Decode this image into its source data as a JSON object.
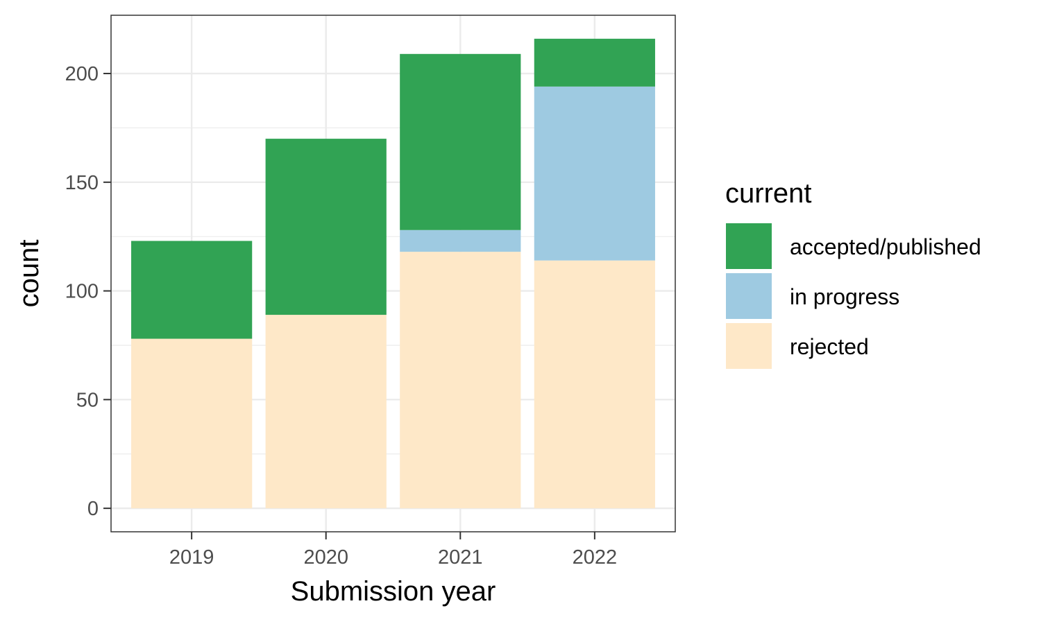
{
  "chart_data": {
    "type": "bar",
    "stacked": true,
    "categories": [
      "2019",
      "2020",
      "2021",
      "2022"
    ],
    "series": [
      {
        "name": "rejected",
        "color": "#FEE8C8",
        "values": [
          78,
          89,
          118,
          114
        ]
      },
      {
        "name": "in progress",
        "color": "#9ECAE1",
        "values": [
          0,
          0,
          10,
          80
        ]
      },
      {
        "name": "accepted/published",
        "color": "#31A354",
        "values": [
          45,
          81,
          81,
          22
        ]
      }
    ],
    "xlabel": "Submission year",
    "ylabel": "count",
    "ylim": [
      -10.8,
      226.8
    ],
    "yticks": [
      0,
      50,
      100,
      150,
      200
    ],
    "grid": true,
    "legend": {
      "title": "current",
      "placement": "right",
      "order": [
        "accepted/published",
        "in progress",
        "rejected"
      ]
    }
  }
}
